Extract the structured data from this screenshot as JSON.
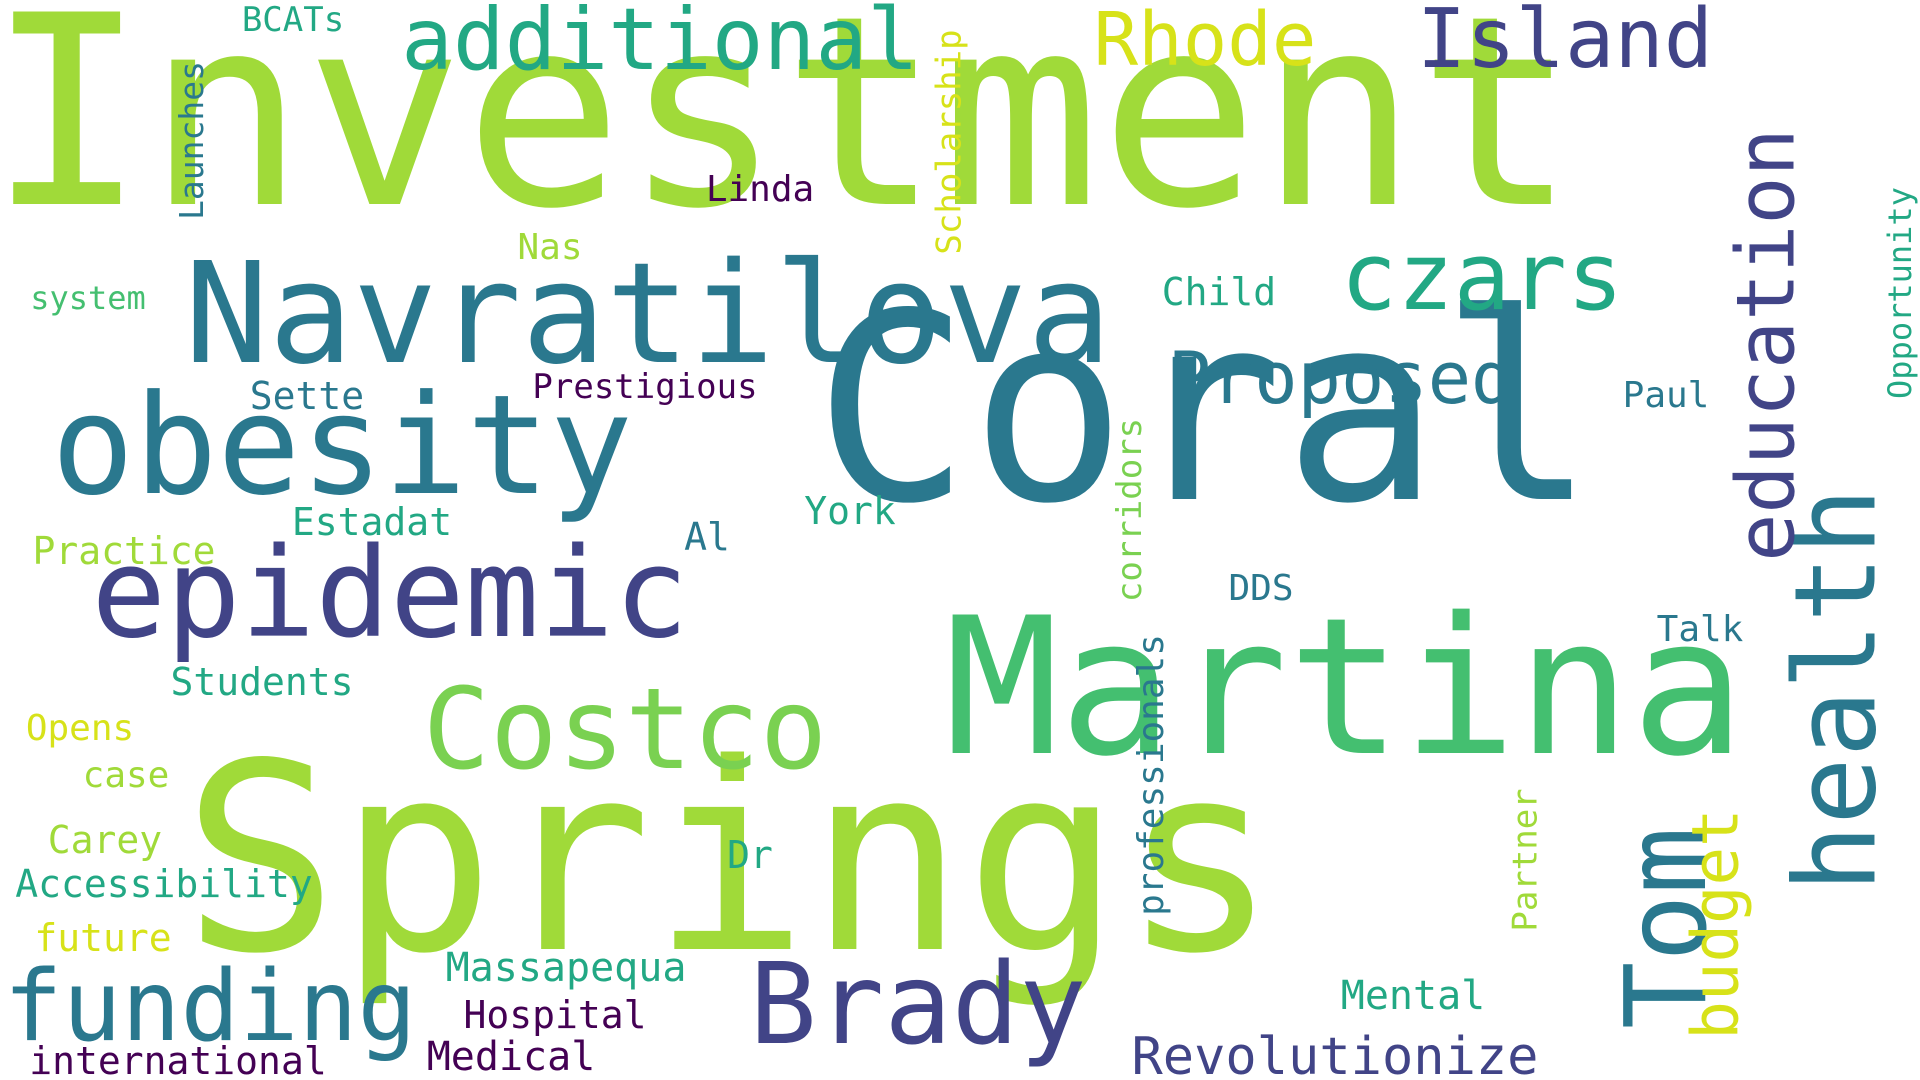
{
  "words": [
    {
      "text": "Investment",
      "color": "#a0da39"
    },
    {
      "text": "Coral",
      "color": "#2a788e"
    },
    {
      "text": "Springs",
      "color": "#a0da39"
    },
    {
      "text": "Martina",
      "color": "#44bf70"
    },
    {
      "text": "Navratilova",
      "color": "#2a788e"
    },
    {
      "text": "obesity",
      "color": "#2a788e"
    },
    {
      "text": "epidemic",
      "color": "#414487"
    },
    {
      "text": "Costco",
      "color": "#7ad151"
    },
    {
      "text": "Brady",
      "color": "#414487"
    },
    {
      "text": "Tom",
      "color": "#2a788e"
    },
    {
      "text": "health",
      "color": "#2a788e"
    },
    {
      "text": "funding",
      "color": "#2a788e"
    },
    {
      "text": "czars",
      "color": "#22a884"
    },
    {
      "text": "additional",
      "color": "#22a884"
    },
    {
      "text": "Island",
      "color": "#414487"
    },
    {
      "text": "Rhode",
      "color": "#d7e219"
    },
    {
      "text": "education",
      "color": "#414487"
    },
    {
      "text": "Proposed",
      "color": "#2a788e"
    },
    {
      "text": "budget",
      "color": "#d7e219"
    },
    {
      "text": "Revolutionize",
      "color": "#414487"
    },
    {
      "text": "professionals",
      "color": "#2a788e"
    },
    {
      "text": "corridors",
      "color": "#7ad151"
    },
    {
      "text": "Scholarship",
      "color": "#d7e219"
    },
    {
      "text": "Launches",
      "color": "#2a788e"
    },
    {
      "text": "Opportunity",
      "color": "#22a884"
    },
    {
      "text": "Partner",
      "color": "#a0da39"
    },
    {
      "text": "BCATs",
      "color": "#22a884"
    },
    {
      "text": "Linda",
      "color": "#440154"
    },
    {
      "text": "Nas",
      "color": "#a0da39"
    },
    {
      "text": "system",
      "color": "#44bf70"
    },
    {
      "text": "Child",
      "color": "#22a884"
    },
    {
      "text": "Prestigious",
      "color": "#440154"
    },
    {
      "text": "Sette",
      "color": "#2a788e"
    },
    {
      "text": "Paul",
      "color": "#2a788e"
    },
    {
      "text": "Estadat",
      "color": "#22a884"
    },
    {
      "text": "York",
      "color": "#22a884"
    },
    {
      "text": "Practice",
      "color": "#a0da39"
    },
    {
      "text": "Al",
      "color": "#2a788e"
    },
    {
      "text": "DDS",
      "color": "#2a788e"
    },
    {
      "text": "Talk",
      "color": "#2a788e"
    },
    {
      "text": "Students",
      "color": "#22a884"
    },
    {
      "text": "Opens",
      "color": "#d7e219"
    },
    {
      "text": "case",
      "color": "#a0da39"
    },
    {
      "text": "Carey",
      "color": "#a0da39"
    },
    {
      "text": "Dr",
      "color": "#22a884"
    },
    {
      "text": "Accessibility",
      "color": "#22a884"
    },
    {
      "text": "future",
      "color": "#d7e219"
    },
    {
      "text": "Massapequa",
      "color": "#22a884"
    },
    {
      "text": "Mental",
      "color": "#22a884"
    },
    {
      "text": "Hospital",
      "color": "#440154"
    },
    {
      "text": "international",
      "color": "#440154"
    },
    {
      "text": "Medical",
      "color": "#440154"
    }
  ]
}
